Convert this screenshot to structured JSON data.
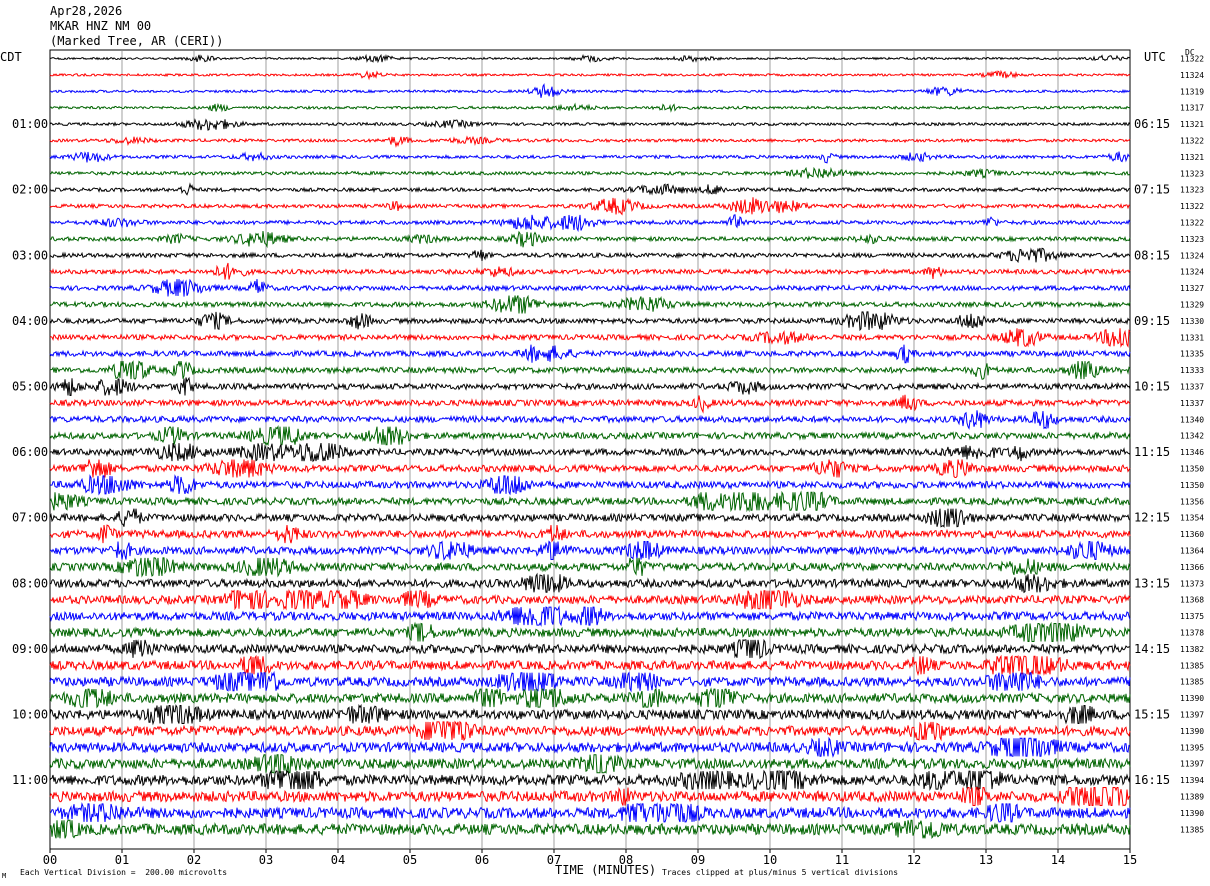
{
  "header": {
    "date": "Apr28,2026",
    "station": "MKAR HNZ NM 00",
    "location": "(Marked Tree, AR (CERI))"
  },
  "corners": {
    "left": "CDT",
    "right": "UTC",
    "dc": "DC"
  },
  "footer": {
    "scale_note": "Each Vertical Division =  200.00 microvolts",
    "clip_note": "Traces clipped at plus/minus 5 vertical divisions",
    "logo": "M"
  },
  "colors": {
    "trace_cycle": [
      "#000000",
      "#ff0000",
      "#0000ff",
      "#006400"
    ],
    "grid": "#888888"
  },
  "chart_data": {
    "type": "line",
    "xlabel": "TIME (MINUTES)",
    "xlim": [
      0,
      15
    ],
    "x_ticks": [
      "00",
      "01",
      "02",
      "03",
      "04",
      "05",
      "06",
      "07",
      "08",
      "09",
      "10",
      "11",
      "12",
      "13",
      "14",
      "15"
    ],
    "rows": 48,
    "left_hour_labels": [
      {
        "row": 4,
        "label": "01:00"
      },
      {
        "row": 8,
        "label": "02:00"
      },
      {
        "row": 12,
        "label": "03:00"
      },
      {
        "row": 16,
        "label": "04:00"
      },
      {
        "row": 20,
        "label": "05:00"
      },
      {
        "row": 24,
        "label": "06:00"
      },
      {
        "row": 28,
        "label": "07:00"
      },
      {
        "row": 32,
        "label": "08:00"
      },
      {
        "row": 36,
        "label": "09:00"
      },
      {
        "row": 40,
        "label": "10:00"
      },
      {
        "row": 44,
        "label": "11:00"
      }
    ],
    "right_hour_labels": [
      {
        "row": 4,
        "label": "06:15"
      },
      {
        "row": 8,
        "label": "07:15"
      },
      {
        "row": 12,
        "label": "08:15"
      },
      {
        "row": 16,
        "label": "09:15"
      },
      {
        "row": 20,
        "label": "10:15"
      },
      {
        "row": 24,
        "label": "11:15"
      },
      {
        "row": 28,
        "label": "12:15"
      },
      {
        "row": 32,
        "label": "13:15"
      },
      {
        "row": 36,
        "label": "14:15"
      },
      {
        "row": 40,
        "label": "15:15"
      },
      {
        "row": 44,
        "label": "16:15"
      }
    ],
    "dc_offsets": [
      "11322",
      "11324",
      "11319",
      "11317",
      "11321",
      "11322",
      "11321",
      "11323",
      "11323",
      "11322",
      "11322",
      "11323",
      "11324",
      "11324",
      "11327",
      "11329",
      "11330",
      "11331",
      "11335",
      "11333",
      "11337",
      "11337",
      "11340",
      "11342",
      "11346",
      "11350",
      "11350",
      "11356",
      "11354",
      "11360",
      "11364",
      "11366",
      "11373",
      "11368",
      "11375",
      "11378",
      "11382",
      "11385",
      "11385",
      "11390",
      "11397",
      "11390",
      "11395",
      "11397",
      "11394",
      "11389",
      "11390",
      "11385"
    ]
  }
}
